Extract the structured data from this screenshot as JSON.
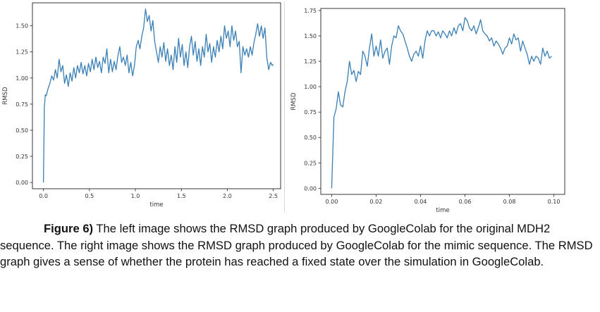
{
  "chart_data": [
    {
      "type": "line",
      "title": "",
      "xlabel": "time",
      "ylabel": "RMSD",
      "xlim": [
        -0.12,
        2.58
      ],
      "ylim": [
        -0.06,
        1.72
      ],
      "xticks": [
        "0.0",
        "0.5",
        "1.0",
        "1.5",
        "2.0",
        "2.5"
      ],
      "yticks": [
        "0.00",
        "0.25",
        "0.50",
        "0.75",
        "1.00",
        "1.25",
        "1.50"
      ],
      "grid": false,
      "series": [
        {
          "color": "#3a7fb5",
          "x": [
            0.0,
            0.01,
            0.02,
            0.03,
            0.05,
            0.07,
            0.09,
            0.11,
            0.13,
            0.15,
            0.17,
            0.19,
            0.21,
            0.23,
            0.25,
            0.27,
            0.29,
            0.31,
            0.33,
            0.35,
            0.37,
            0.39,
            0.41,
            0.43,
            0.45,
            0.47,
            0.49,
            0.51,
            0.53,
            0.55,
            0.57,
            0.59,
            0.61,
            0.63,
            0.65,
            0.67,
            0.69,
            0.71,
            0.73,
            0.75,
            0.77,
            0.79,
            0.81,
            0.83,
            0.85,
            0.87,
            0.89,
            0.91,
            0.93,
            0.95,
            0.97,
            0.99,
            1.01,
            1.03,
            1.05,
            1.07,
            1.09,
            1.11,
            1.13,
            1.15,
            1.17,
            1.19,
            1.21,
            1.23,
            1.25,
            1.27,
            1.29,
            1.31,
            1.33,
            1.35,
            1.37,
            1.39,
            1.41,
            1.43,
            1.45,
            1.47,
            1.49,
            1.51,
            1.53,
            1.55,
            1.57,
            1.59,
            1.61,
            1.63,
            1.65,
            1.67,
            1.69,
            1.71,
            1.73,
            1.75,
            1.77,
            1.79,
            1.81,
            1.83,
            1.85,
            1.87,
            1.89,
            1.91,
            1.93,
            1.95,
            1.97,
            1.99,
            2.01,
            2.03,
            2.05,
            2.07,
            2.09,
            2.11,
            2.13,
            2.15,
            2.17,
            2.19,
            2.21,
            2.23,
            2.25,
            2.27,
            2.29,
            2.31,
            2.33,
            2.35,
            2.37,
            2.39,
            2.41,
            2.43,
            2.45,
            2.47,
            2.49,
            2.5
          ],
          "y": [
            0.0,
            0.72,
            0.84,
            0.83,
            0.9,
            0.95,
            1.02,
            0.98,
            1.08,
            1.0,
            1.18,
            1.06,
            1.12,
            0.95,
            1.03,
            0.92,
            1.05,
            0.97,
            1.1,
            1.0,
            1.12,
            1.05,
            1.15,
            1.04,
            1.12,
            1.02,
            1.14,
            1.06,
            1.18,
            1.08,
            1.2,
            1.1,
            1.16,
            1.05,
            1.2,
            1.14,
            1.28,
            1.05,
            1.18,
            1.06,
            1.16,
            1.08,
            1.21,
            1.3,
            1.15,
            1.2,
            1.12,
            1.22,
            1.05,
            1.15,
            1.02,
            1.12,
            1.3,
            1.36,
            1.28,
            1.4,
            1.48,
            1.66,
            1.54,
            1.6,
            1.45,
            1.55,
            1.35,
            1.25,
            1.15,
            1.3,
            1.2,
            1.34,
            1.16,
            1.28,
            1.12,
            1.22,
            1.08,
            1.3,
            1.15,
            1.38,
            1.2,
            1.32,
            1.12,
            1.25,
            1.1,
            1.3,
            1.4,
            1.22,
            1.35,
            1.16,
            1.28,
            1.12,
            1.3,
            1.2,
            1.42,
            1.25,
            1.33,
            1.15,
            1.3,
            1.2,
            1.36,
            1.25,
            1.4,
            1.28,
            1.5,
            1.38,
            1.45,
            1.3,
            1.5,
            1.36,
            1.45,
            1.3,
            1.35,
            1.05,
            1.3,
            1.22,
            1.28,
            1.2,
            1.3,
            1.22,
            1.34,
            1.42,
            1.52,
            1.4,
            1.5,
            1.38,
            1.48,
            1.2,
            1.08,
            1.15,
            1.12,
            1.13
          ]
        }
      ]
    },
    {
      "type": "line",
      "title": "",
      "xlabel": "time",
      "ylabel": "RMSD",
      "xlim": [
        -0.0049,
        0.1049
      ],
      "ylim": [
        -0.06,
        1.77
      ],
      "xticks": [
        "0.00",
        "0.02",
        "0.04",
        "0.06",
        "0.08",
        "0.10"
      ],
      "yticks": [
        "0.00",
        "0.25",
        "0.50",
        "0.75",
        "1.00",
        "1.25",
        "1.50",
        "1.75"
      ],
      "grid": false,
      "series": [
        {
          "color": "#3a7fb5",
          "x": [
            0.0,
            0.001,
            0.002,
            0.003,
            0.004,
            0.005,
            0.006,
            0.007,
            0.008,
            0.009,
            0.01,
            0.011,
            0.012,
            0.013,
            0.014,
            0.015,
            0.016,
            0.017,
            0.018,
            0.019,
            0.02,
            0.021,
            0.022,
            0.023,
            0.024,
            0.025,
            0.026,
            0.027,
            0.028,
            0.029,
            0.03,
            0.031,
            0.032,
            0.033,
            0.034,
            0.035,
            0.036,
            0.037,
            0.038,
            0.039,
            0.04,
            0.041,
            0.042,
            0.043,
            0.044,
            0.045,
            0.046,
            0.047,
            0.048,
            0.049,
            0.05,
            0.051,
            0.052,
            0.053,
            0.054,
            0.055,
            0.056,
            0.057,
            0.058,
            0.059,
            0.06,
            0.061,
            0.062,
            0.063,
            0.064,
            0.065,
            0.066,
            0.067,
            0.068,
            0.069,
            0.07,
            0.071,
            0.072,
            0.073,
            0.074,
            0.075,
            0.076,
            0.077,
            0.078,
            0.079,
            0.08,
            0.081,
            0.082,
            0.083,
            0.084,
            0.085,
            0.086,
            0.087,
            0.088,
            0.089,
            0.09,
            0.091,
            0.092,
            0.093,
            0.094,
            0.095,
            0.096,
            0.097,
            0.098,
            0.099
          ],
          "y": [
            0.0,
            0.7,
            0.78,
            0.95,
            0.82,
            0.8,
            0.95,
            1.05,
            1.25,
            1.12,
            1.16,
            1.05,
            1.15,
            1.12,
            1.35,
            1.3,
            1.2,
            1.38,
            1.52,
            1.3,
            1.4,
            1.3,
            1.46,
            1.28,
            1.35,
            1.38,
            1.22,
            1.4,
            1.5,
            1.48,
            1.6,
            1.55,
            1.52,
            1.45,
            1.38,
            1.3,
            1.25,
            1.32,
            1.35,
            1.3,
            1.4,
            1.28,
            1.45,
            1.55,
            1.5,
            1.55,
            1.55,
            1.5,
            1.54,
            1.48,
            1.55,
            1.52,
            1.48,
            1.55,
            1.5,
            1.58,
            1.52,
            1.6,
            1.62,
            1.55,
            1.68,
            1.65,
            1.58,
            1.55,
            1.6,
            1.52,
            1.58,
            1.66,
            1.55,
            1.52,
            1.5,
            1.45,
            1.48,
            1.4,
            1.45,
            1.42,
            1.38,
            1.32,
            1.38,
            1.4,
            1.48,
            1.42,
            1.52,
            1.46,
            1.48,
            1.35,
            1.45,
            1.38,
            1.32,
            1.22,
            1.3,
            1.25,
            1.3,
            1.28,
            1.22,
            1.38,
            1.3,
            1.35,
            1.28,
            1.3
          ]
        }
      ]
    }
  ],
  "caption": {
    "label": "Figure 6)",
    "text": " The left image shows the RMSD graph produced by GoogleColab for the original MDH2 sequence. The right image shows the RMSD graph produced by GoogleColab for the mimic sequence. The RMSD graph gives a sense of whether the protein has reached a fixed state over the simulation in GoogleColab."
  }
}
